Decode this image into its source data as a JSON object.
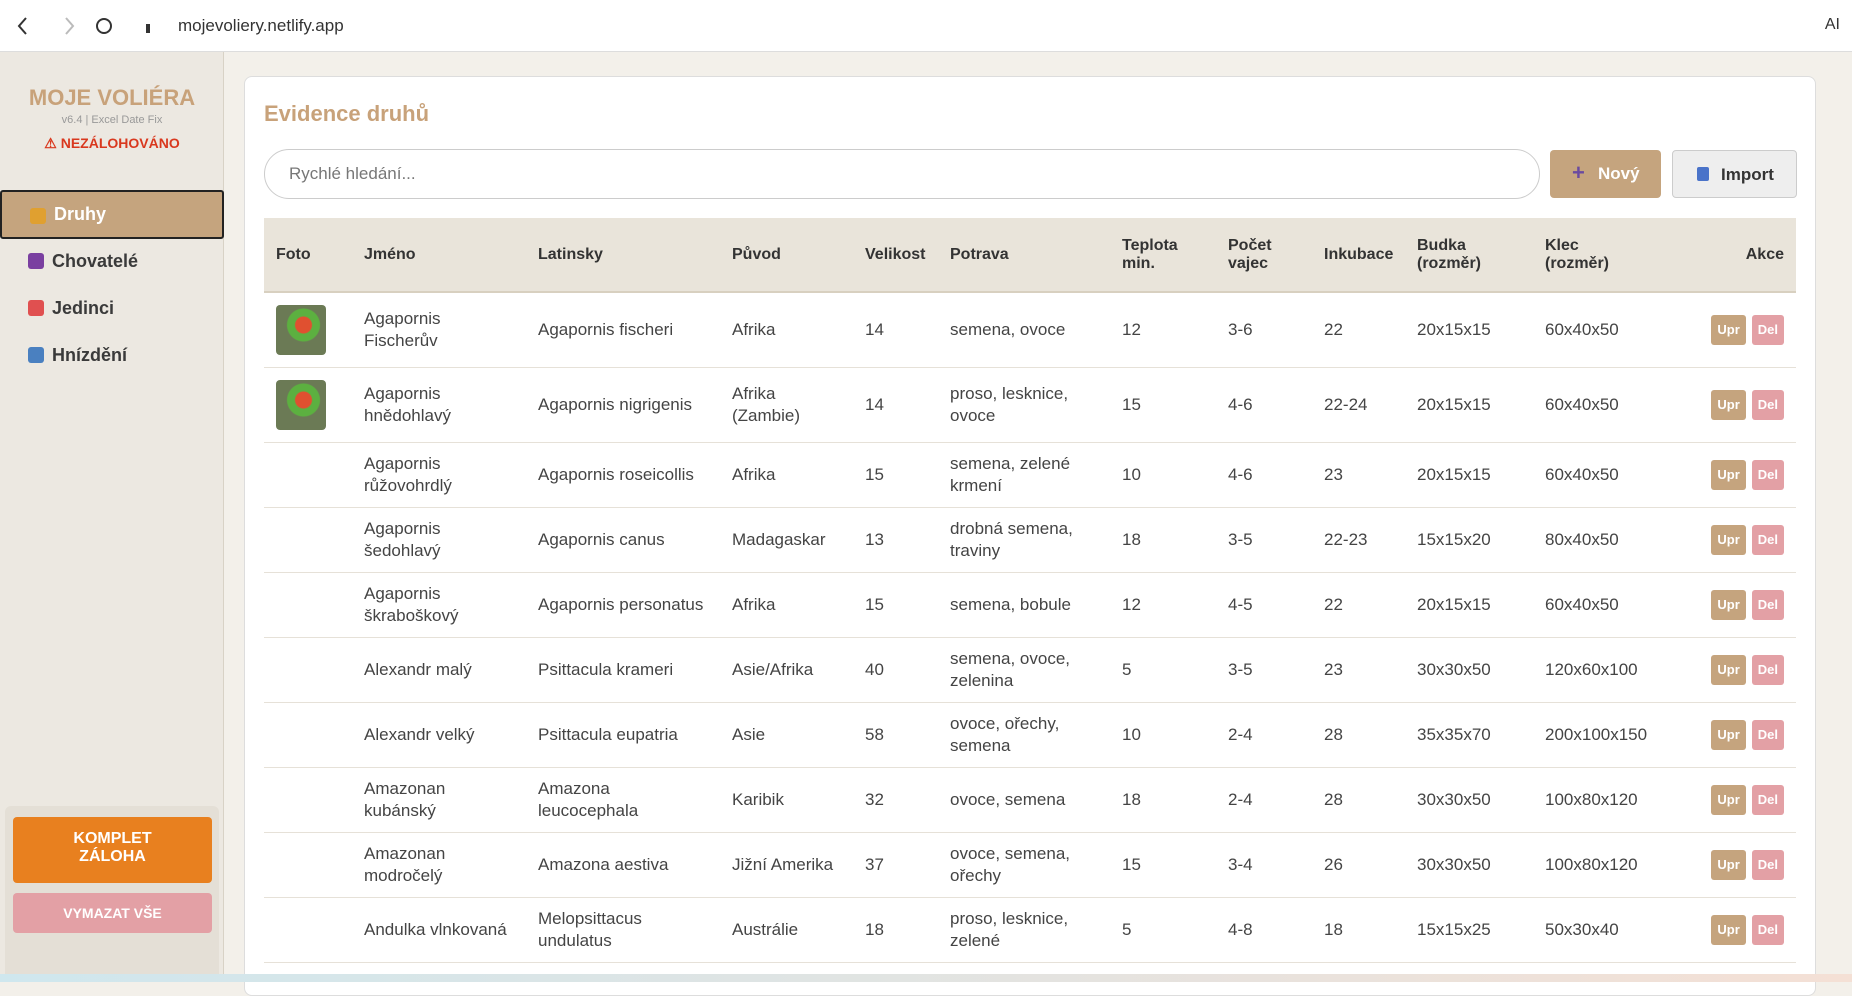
{
  "browser": {
    "url": "mojevoliery.netlify.app",
    "ai": "AI"
  },
  "sidebar": {
    "title": "MOJE VOLIÉRA",
    "version": "v6.4 | Excel Date Fix",
    "warning": "⚠ NEZÁLOHOVÁNO",
    "nav": [
      "Druhy",
      "Chovatelé",
      "Jedinci",
      "Hnízdění"
    ],
    "backup": "KOMPLET ZÁLOHA",
    "clear": "VYMAZAT VŠE"
  },
  "main": {
    "title": "Evidence druhů",
    "search": "Rychlé hledání...",
    "new": "Nový",
    "import": "Import",
    "table": {
      "headers": [
        "Foto",
        "Jméno",
        "Latinsky",
        "Původ",
        "Velikost",
        "Potrava",
        "Teplota min.",
        "Počet vajec",
        "Inkubace",
        "Budka (rozměr)",
        "Klec (rozměr)",
        "Akce"
      ],
      "actions": [
        "Upr",
        "Del"
      ],
      "rows": [
        [
          "Agapornis Fischerův",
          "Agapornis fischeri",
          "Afrika",
          "14",
          "semena, ovoce",
          "12",
          "3-6",
          "22",
          "20x15x15",
          "60x40x50"
        ],
        [
          "Agapornis hnědohlavý",
          "Agapornis nigrigenis",
          "Afrika (Zambie)",
          "14",
          "proso, lesknice, ovoce",
          "15",
          "4-6",
          "22-24",
          "20x15x15",
          "60x40x50"
        ],
        [
          "Agapornis růžovohrdlý",
          "Agapornis roseicollis",
          "Afrika",
          "15",
          "semena, zelené krmení",
          "10",
          "4-6",
          "23",
          "20x15x15",
          "60x40x50"
        ],
        [
          "Agapornis šedohlavý",
          "Agapornis canus",
          "Madagaskar",
          "13",
          "drobná semena, traviny",
          "18",
          "3-5",
          "22-23",
          "15x15x20",
          "80x40x50"
        ],
        [
          "Agapornis škraboškový",
          "Agapornis personatus",
          "Afrika",
          "15",
          "semena, bobule",
          "12",
          "4-5",
          "22",
          "20x15x15",
          "60x40x50"
        ],
        [
          "Alexandr malý",
          "Psittacula krameri",
          "Asie/Afrika",
          "40",
          "semena, ovoce, zelenina",
          "5",
          "3-5",
          "23",
          "30x30x50",
          "120x60x100"
        ],
        [
          "Alexandr velký",
          "Psittacula eupatria",
          "Asie",
          "58",
          "ovoce, ořechy, semena",
          "10",
          "2-4",
          "28",
          "35x35x70",
          "200x100x150"
        ],
        [
          "Amazonan kubánský",
          "Amazona leucocephala",
          "Karibik",
          "32",
          "ovoce, semena",
          "18",
          "2-4",
          "28",
          "30x30x50",
          "100x80x120"
        ],
        [
          "Amazonan modročelý",
          "Amazona aestiva",
          "Jižní Amerika",
          "37",
          "ovoce, semena, ořechy",
          "15",
          "3-4",
          "26",
          "30x30x50",
          "100x80x120"
        ],
        [
          "Andulka vlnkovaná",
          "Melopsittacus undulatus",
          "Austrálie",
          "18",
          "proso, lesknice, zelené",
          "5",
          "4-8",
          "18",
          "15x15x25",
          "50x30x40"
        ]
      ]
    }
  }
}
